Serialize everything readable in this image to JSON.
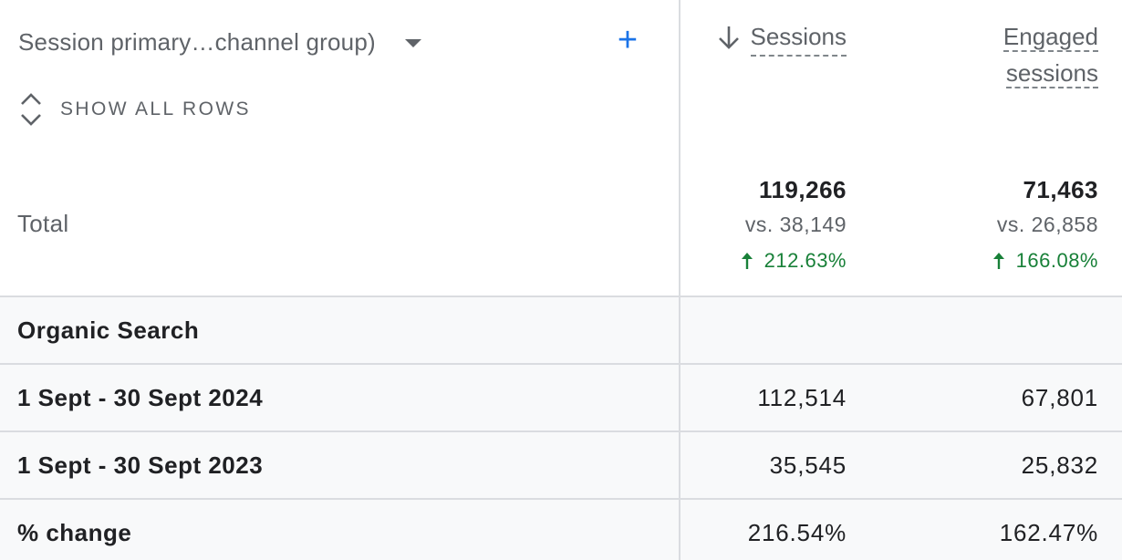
{
  "header": {
    "dimension_label": "Session primary…channel group)",
    "add_button": "+",
    "show_all_rows": "SHOW ALL ROWS",
    "metrics": [
      {
        "label": "Sessions",
        "sorted": "descending"
      },
      {
        "label_line1": "Engaged",
        "label_line2": "sessions"
      }
    ]
  },
  "totals": {
    "label": "Total",
    "sessions": {
      "value": "119,266",
      "compare": "vs. 38,149",
      "change": "212.63%"
    },
    "engaged": {
      "value": "71,463",
      "compare": "vs. 26,858",
      "change": "166.08%"
    }
  },
  "rows": [
    {
      "label": "Organic Search",
      "sessions": "",
      "engaged": ""
    },
    {
      "label": "1 Sept - 30 Sept 2024",
      "sessions": "112,514",
      "engaged": "67,801"
    },
    {
      "label": "1 Sept - 30 Sept 2023",
      "sessions": "35,545",
      "engaged": "25,832"
    },
    {
      "label": "% change",
      "sessions": "216.54%",
      "engaged": "162.47%"
    }
  ],
  "colors": {
    "accent": "#1a73e8",
    "positive": "#188038",
    "muted": "#5f6368",
    "divider": "#dadce0",
    "row_bg": "#f8f9fa"
  }
}
